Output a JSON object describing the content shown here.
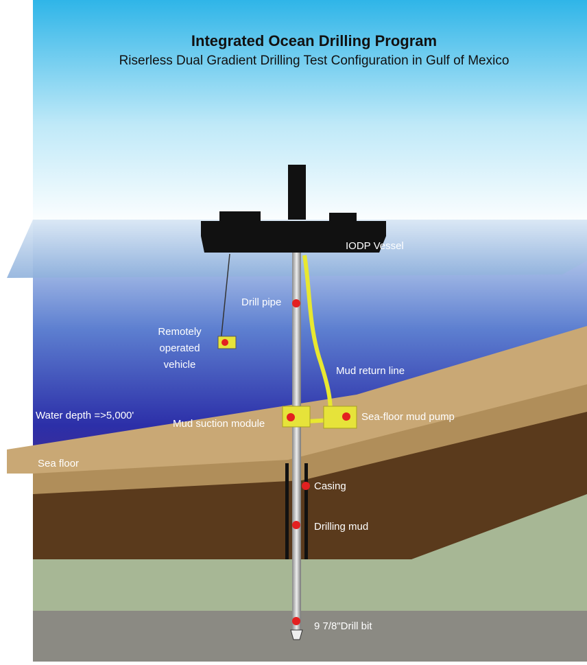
{
  "title": "Integrated Ocean Drilling Program",
  "subtitle": "Riserless Dual Gradient Drilling Test Configuration in Gulf of Mexico",
  "labels": {
    "vessel": "IODP Vessel",
    "drill_pipe": "Drill pipe",
    "rov": [
      "Remotely",
      "operated",
      "vehicle"
    ],
    "mud_return_line": "Mud return line",
    "water_depth": "Water depth =>5,000'",
    "mud_suction_module": "Mud suction module",
    "mud_pump": "Sea-floor mud pump",
    "sea_floor": "Sea floor",
    "casing": "Casing",
    "drilling_mud": "Drilling mud",
    "drill_bit": "9 7/8\"Drill bit"
  }
}
